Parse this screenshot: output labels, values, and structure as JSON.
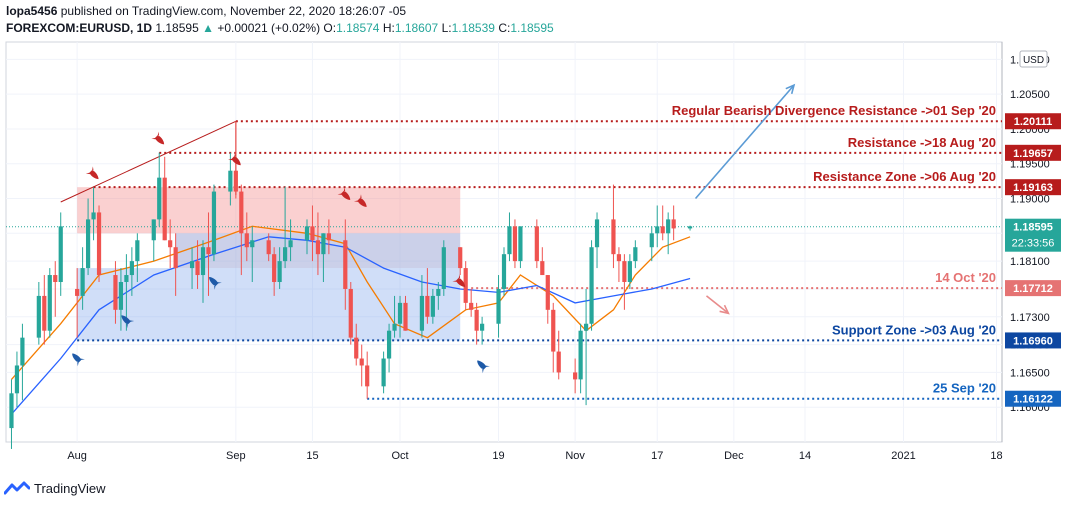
{
  "header": {
    "publisher": "lopa5456",
    "published_text": "published on TradingView.com, November 22, 2020 18:26:07 -05",
    "symbol": "FOREXCOM:EURUSD, 1D",
    "last": "1.18595",
    "change_arrow": "▲",
    "change": "+0.00021 (+0.02%)",
    "o_label": "O:",
    "o": "1.18574",
    "h_label": "H:",
    "h": "1.18607",
    "l_label": "L:",
    "l": "1.18539",
    "c_label": "C:",
    "c": "1.18595"
  },
  "footer": {
    "brand": "TradingView",
    "logo_icon": "tradingview-logo-icon"
  },
  "chart_data": {
    "type": "candlestick",
    "currency_badge": "USD",
    "ylim": [
      1.155,
      1.2125
    ],
    "y_ticks": [
      "1.21000",
      "1.20500",
      "1.20000",
      "1.19500",
      "1.19000",
      "1.18500",
      "1.18100",
      "1.17700",
      "1.17300",
      "1.16900",
      "1.16500",
      "1.16000"
    ],
    "y_tick_values": [
      1.21,
      1.205,
      1.2,
      1.195,
      1.19,
      1.185,
      1.181,
      1.177,
      1.173,
      1.169,
      1.165,
      1.16
    ],
    "x_ticks": [
      {
        "label": "Aug",
        "date": "2020-08-03"
      },
      {
        "label": "Sep",
        "date": "2020-09-01"
      },
      {
        "label": "15",
        "date": "2020-09-15"
      },
      {
        "label": "Oct",
        "date": "2020-10-01"
      },
      {
        "label": "19",
        "date": "2020-10-19"
      },
      {
        "label": "Nov",
        "date": "2020-11-02"
      },
      {
        "label": "17",
        "date": "2020-11-17"
      },
      {
        "label": "Dec",
        "date": "2020-12-01"
      },
      {
        "label": "14",
        "date": "2020-12-14"
      },
      {
        "label": "2021",
        "date": "2021-01-01"
      },
      {
        "label": "18",
        "date": "2021-01-18"
      }
    ],
    "xlim": [
      "2020-07-21",
      "2021-01-19"
    ],
    "candles": [
      {
        "d": "2020-07-22",
        "o": 1.157,
        "h": 1.164,
        "l": 1.154,
        "c": 1.162
      },
      {
        "d": "2020-07-23",
        "o": 1.162,
        "h": 1.168,
        "l": 1.16,
        "c": 1.166
      },
      {
        "d": "2020-07-24",
        "o": 1.166,
        "h": 1.172,
        "l": 1.161,
        "c": 1.17
      },
      {
        "d": "2020-07-27",
        "o": 1.17,
        "h": 1.178,
        "l": 1.169,
        "c": 1.176
      },
      {
        "d": "2020-07-28",
        "o": 1.176,
        "h": 1.179,
        "l": 1.169,
        "c": 1.171
      },
      {
        "d": "2020-07-29",
        "o": 1.171,
        "h": 1.18,
        "l": 1.17,
        "c": 1.179
      },
      {
        "d": "2020-07-30",
        "o": 1.179,
        "h": 1.181,
        "l": 1.173,
        "c": 1.178
      },
      {
        "d": "2020-07-31",
        "o": 1.178,
        "h": 1.188,
        "l": 1.176,
        "c": 1.186
      },
      {
        "d": "2020-08-03",
        "o": 1.177,
        "h": 1.18,
        "l": 1.17,
        "c": 1.176
      },
      {
        "d": "2020-08-04",
        "o": 1.176,
        "h": 1.183,
        "l": 1.174,
        "c": 1.18
      },
      {
        "d": "2020-08-05",
        "o": 1.18,
        "h": 1.19,
        "l": 1.179,
        "c": 1.187
      },
      {
        "d": "2020-08-06",
        "o": 1.187,
        "h": 1.1916,
        "l": 1.184,
        "c": 1.188
      },
      {
        "d": "2020-08-07",
        "o": 1.188,
        "h": 1.189,
        "l": 1.178,
        "c": 1.179
      },
      {
        "d": "2020-08-10",
        "o": 1.179,
        "h": 1.181,
        "l": 1.172,
        "c": 1.174
      },
      {
        "d": "2020-08-11",
        "o": 1.174,
        "h": 1.18,
        "l": 1.171,
        "c": 1.178
      },
      {
        "d": "2020-08-12",
        "o": 1.178,
        "h": 1.182,
        "l": 1.171,
        "c": 1.179
      },
      {
        "d": "2020-08-13",
        "o": 1.179,
        "h": 1.183,
        "l": 1.176,
        "c": 1.181
      },
      {
        "d": "2020-08-14",
        "o": 1.181,
        "h": 1.185,
        "l": 1.178,
        "c": 1.184
      },
      {
        "d": "2020-08-17",
        "o": 1.184,
        "h": 1.187,
        "l": 1.181,
        "c": 1.187
      },
      {
        "d": "2020-08-18",
        "o": 1.187,
        "h": 1.1966,
        "l": 1.186,
        "c": 1.193
      },
      {
        "d": "2020-08-19",
        "o": 1.193,
        "h": 1.196,
        "l": 1.184,
        "c": 1.184
      },
      {
        "d": "2020-08-20",
        "o": 1.184,
        "h": 1.187,
        "l": 1.18,
        "c": 1.183
      },
      {
        "d": "2020-08-21",
        "o": 1.183,
        "h": 1.185,
        "l": 1.176,
        "c": 1.18
      },
      {
        "d": "2020-08-24",
        "o": 1.18,
        "h": 1.183,
        "l": 1.177,
        "c": 1.181
      },
      {
        "d": "2020-08-25",
        "o": 1.181,
        "h": 1.184,
        "l": 1.177,
        "c": 1.179
      },
      {
        "d": "2020-08-26",
        "o": 1.179,
        "h": 1.184,
        "l": 1.175,
        "c": 1.183
      },
      {
        "d": "2020-08-27",
        "o": 1.183,
        "h": 1.188,
        "l": 1.176,
        "c": 1.182
      },
      {
        "d": "2020-08-28",
        "o": 1.182,
        "h": 1.192,
        "l": 1.181,
        "c": 1.191
      },
      {
        "d": "2020-08-31",
        "o": 1.191,
        "h": 1.1966,
        "l": 1.189,
        "c": 1.194
      },
      {
        "d": "2020-09-01",
        "o": 1.194,
        "h": 1.2011,
        "l": 1.19,
        "c": 1.191
      },
      {
        "d": "2020-09-02",
        "o": 1.191,
        "h": 1.192,
        "l": 1.179,
        "c": 1.185
      },
      {
        "d": "2020-09-03",
        "o": 1.185,
        "h": 1.188,
        "l": 1.181,
        "c": 1.183
      },
      {
        "d": "2020-09-04",
        "o": 1.183,
        "h": 1.186,
        "l": 1.178,
        "c": 1.184
      },
      {
        "d": "2020-09-07",
        "o": 1.184,
        "h": 1.185,
        "l": 1.181,
        "c": 1.182
      },
      {
        "d": "2020-09-08",
        "o": 1.182,
        "h": 1.183,
        "l": 1.176,
        "c": 1.178
      },
      {
        "d": "2020-09-09",
        "o": 1.178,
        "h": 1.183,
        "l": 1.177,
        "c": 1.181
      },
      {
        "d": "2020-09-10",
        "o": 1.181,
        "h": 1.1917,
        "l": 1.18,
        "c": 1.183
      },
      {
        "d": "2020-09-11",
        "o": 1.183,
        "h": 1.187,
        "l": 1.181,
        "c": 1.184
      },
      {
        "d": "2020-09-14",
        "o": 1.184,
        "h": 1.187,
        "l": 1.182,
        "c": 1.186
      },
      {
        "d": "2020-09-15",
        "o": 1.186,
        "h": 1.189,
        "l": 1.181,
        "c": 1.184
      },
      {
        "d": "2020-09-16",
        "o": 1.184,
        "h": 1.188,
        "l": 1.179,
        "c": 1.182
      },
      {
        "d": "2020-09-17",
        "o": 1.182,
        "h": 1.185,
        "l": 1.178,
        "c": 1.185
      },
      {
        "d": "2020-09-18",
        "o": 1.185,
        "h": 1.187,
        "l": 1.182,
        "c": 1.184
      },
      {
        "d": "2020-09-21",
        "o": 1.184,
        "h": 1.187,
        "l": 1.174,
        "c": 1.177
      },
      {
        "d": "2020-09-22",
        "o": 1.177,
        "h": 1.178,
        "l": 1.169,
        "c": 1.17
      },
      {
        "d": "2020-09-23",
        "o": 1.17,
        "h": 1.172,
        "l": 1.166,
        "c": 1.167
      },
      {
        "d": "2020-09-24",
        "o": 1.167,
        "h": 1.169,
        "l": 1.163,
        "c": 1.166
      },
      {
        "d": "2020-09-25",
        "o": 1.166,
        "h": 1.168,
        "l": 1.1612,
        "c": 1.163
      },
      {
        "d": "2020-09-28",
        "o": 1.163,
        "h": 1.168,
        "l": 1.162,
        "c": 1.167
      },
      {
        "d": "2020-09-29",
        "o": 1.167,
        "h": 1.172,
        "l": 1.165,
        "c": 1.171
      },
      {
        "d": "2020-09-30",
        "o": 1.171,
        "h": 1.176,
        "l": 1.17,
        "c": 1.172
      },
      {
        "d": "2020-10-01",
        "o": 1.172,
        "h": 1.176,
        "l": 1.17,
        "c": 1.175
      },
      {
        "d": "2020-10-02",
        "o": 1.175,
        "h": 1.176,
        "l": 1.171,
        "c": 1.171
      },
      {
        "d": "2020-10-05",
        "o": 1.171,
        "h": 1.179,
        "l": 1.17,
        "c": 1.176
      },
      {
        "d": "2020-10-06",
        "o": 1.176,
        "h": 1.18,
        "l": 1.172,
        "c": 1.173
      },
      {
        "d": "2020-10-07",
        "o": 1.173,
        "h": 1.177,
        "l": 1.172,
        "c": 1.176
      },
      {
        "d": "2020-10-08",
        "o": 1.176,
        "h": 1.178,
        "l": 1.174,
        "c": 1.177
      },
      {
        "d": "2020-10-09",
        "o": 1.177,
        "h": 1.184,
        "l": 1.176,
        "c": 1.183
      },
      {
        "d": "2020-10-12",
        "o": 1.183,
        "h": 1.183,
        "l": 1.179,
        "c": 1.18
      },
      {
        "d": "2020-10-13",
        "o": 1.18,
        "h": 1.181,
        "l": 1.174,
        "c": 1.175
      },
      {
        "d": "2020-10-14",
        "o": 1.175,
        "h": 1.177,
        "l": 1.173,
        "c": 1.174
      },
      {
        "d": "2020-10-15",
        "o": 1.174,
        "h": 1.175,
        "l": 1.169,
        "c": 1.171
      },
      {
        "d": "2020-10-16",
        "o": 1.171,
        "h": 1.173,
        "l": 1.169,
        "c": 1.172
      },
      {
        "d": "2020-10-19",
        "o": 1.172,
        "h": 1.179,
        "l": 1.17,
        "c": 1.177
      },
      {
        "d": "2020-10-20",
        "o": 1.177,
        "h": 1.183,
        "l": 1.176,
        "c": 1.182
      },
      {
        "d": "2020-10-21",
        "o": 1.182,
        "h": 1.188,
        "l": 1.181,
        "c": 1.186
      },
      {
        "d": "2020-10-22",
        "o": 1.186,
        "h": 1.187,
        "l": 1.18,
        "c": 1.181
      },
      {
        "d": "2020-10-23",
        "o": 1.181,
        "h": 1.186,
        "l": 1.18,
        "c": 1.186
      },
      {
        "d": "2020-10-26",
        "o": 1.186,
        "h": 1.187,
        "l": 1.18,
        "c": 1.181
      },
      {
        "d": "2020-10-27",
        "o": 1.181,
        "h": 1.183,
        "l": 1.179,
        "c": 1.179
      },
      {
        "d": "2020-10-28",
        "o": 1.179,
        "h": 1.179,
        "l": 1.172,
        "c": 1.174
      },
      {
        "d": "2020-10-29",
        "o": 1.174,
        "h": 1.175,
        "l": 1.165,
        "c": 1.168
      },
      {
        "d": "2020-10-30",
        "o": 1.168,
        "h": 1.171,
        "l": 1.164,
        "c": 1.165
      },
      {
        "d": "2020-11-02",
        "o": 1.165,
        "h": 1.167,
        "l": 1.162,
        "c": 1.164
      },
      {
        "d": "2020-11-03",
        "o": 1.164,
        "h": 1.172,
        "l": 1.162,
        "c": 1.171
      },
      {
        "d": "2020-11-04",
        "o": 1.171,
        "h": 1.177,
        "l": 1.1603,
        "c": 1.172
      },
      {
        "d": "2020-11-05",
        "o": 1.172,
        "h": 1.184,
        "l": 1.171,
        "c": 1.183
      },
      {
        "d": "2020-11-06",
        "o": 1.183,
        "h": 1.188,
        "l": 1.18,
        "c": 1.187
      },
      {
        "d": "2020-11-09",
        "o": 1.187,
        "h": 1.192,
        "l": 1.18,
        "c": 1.182
      },
      {
        "d": "2020-11-10",
        "o": 1.182,
        "h": 1.183,
        "l": 1.178,
        "c": 1.181
      },
      {
        "d": "2020-11-11",
        "o": 1.181,
        "h": 1.182,
        "l": 1.174,
        "c": 1.178
      },
      {
        "d": "2020-11-12",
        "o": 1.178,
        "h": 1.182,
        "l": 1.177,
        "c": 1.181
      },
      {
        "d": "2020-11-13",
        "o": 1.181,
        "h": 1.184,
        "l": 1.18,
        "c": 1.183
      },
      {
        "d": "2020-11-16",
        "o": 1.183,
        "h": 1.186,
        "l": 1.181,
        "c": 1.185
      },
      {
        "d": "2020-11-17",
        "o": 1.185,
        "h": 1.189,
        "l": 1.183,
        "c": 1.186
      },
      {
        "d": "2020-11-18",
        "o": 1.186,
        "h": 1.189,
        "l": 1.184,
        "c": 1.185
      },
      {
        "d": "2020-11-19",
        "o": 1.185,
        "h": 1.188,
        "l": 1.182,
        "c": 1.187
      },
      {
        "d": "2020-11-20",
        "o": 1.187,
        "h": 1.189,
        "l": 1.184,
        "c": 1.1857
      },
      {
        "d": "2020-11-23",
        "o": 1.1857,
        "h": 1.1861,
        "l": 1.1854,
        "c": 1.186
      }
    ],
    "ma_series": [
      {
        "color": "#f57c00",
        "points": [
          [
            "2020-07-22",
            1.164
          ],
          [
            "2020-07-31",
            1.172
          ],
          [
            "2020-08-07",
            1.179
          ],
          [
            "2020-08-17",
            1.181
          ],
          [
            "2020-08-28",
            1.184
          ],
          [
            "2020-09-04",
            1.186
          ],
          [
            "2020-09-14",
            1.185
          ],
          [
            "2020-09-21",
            1.1835
          ],
          [
            "2020-09-25",
            1.178
          ],
          [
            "2020-09-30",
            1.172
          ],
          [
            "2020-10-06",
            1.17
          ],
          [
            "2020-10-13",
            1.174
          ],
          [
            "2020-10-19",
            1.175
          ],
          [
            "2020-10-23",
            1.179
          ],
          [
            "2020-10-29",
            1.176
          ],
          [
            "2020-11-04",
            1.171
          ],
          [
            "2020-11-09",
            1.174
          ],
          [
            "2020-11-13",
            1.179
          ],
          [
            "2020-11-18",
            1.183
          ],
          [
            "2020-11-23",
            1.1845
          ]
        ]
      },
      {
        "color": "#2962ff",
        "points": [
          [
            "2020-07-22",
            1.159
          ],
          [
            "2020-07-31",
            1.167
          ],
          [
            "2020-08-07",
            1.174
          ],
          [
            "2020-08-17",
            1.179
          ],
          [
            "2020-08-28",
            1.182
          ],
          [
            "2020-09-07",
            1.1845
          ],
          [
            "2020-09-14",
            1.184
          ],
          [
            "2020-09-21",
            1.183
          ],
          [
            "2020-09-28",
            1.18
          ],
          [
            "2020-10-05",
            1.178
          ],
          [
            "2020-10-12",
            1.177
          ],
          [
            "2020-10-19",
            1.1765
          ],
          [
            "2020-10-26",
            1.1775
          ],
          [
            "2020-11-02",
            1.175
          ],
          [
            "2020-11-09",
            1.176
          ],
          [
            "2020-11-16",
            1.177
          ],
          [
            "2020-11-23",
            1.1785
          ]
        ]
      }
    ],
    "zones": [
      {
        "from": "2020-08-03",
        "to": "2020-10-12",
        "top": 1.19163,
        "bottom": 1.185,
        "color": "rgba(244,143,143,0.42)"
      },
      {
        "from": "2020-08-21",
        "to": "2020-10-12",
        "top": 1.185,
        "bottom": 1.18,
        "color": "rgba(160,170,215,0.55)"
      },
      {
        "from": "2020-08-03",
        "to": "2020-10-12",
        "top": 1.18,
        "bottom": 1.1696,
        "color": "rgba(120,160,235,0.35)"
      }
    ],
    "levels": [
      {
        "value": 1.20111,
        "price_label": "1.20111",
        "text": "Regular Bearish Divergence Resistance ->01 Sep '20",
        "color": "#b71c1c",
        "from": "2020-09-01",
        "label_bg": "#b71c1c"
      },
      {
        "value": 1.19657,
        "price_label": "1.19657",
        "text": "Resistance ->18 Aug '20",
        "color": "#b71c1c",
        "from": "2020-08-18",
        "label_bg": "#b71c1c"
      },
      {
        "value": 1.19163,
        "price_label": "1.19163",
        "text": "Resistance Zone ->06 Aug '20",
        "color": "#b71c1c",
        "from": "2020-08-06",
        "label_bg": "#b71c1c"
      },
      {
        "value": 1.17712,
        "price_label": "1.17712",
        "text": "14 Oct '20",
        "color": "#e57373",
        "from": "2020-10-14",
        "label_bg": "#e57373"
      },
      {
        "value": 1.1696,
        "price_label": "1.16960",
        "text": "Support Zone ->03 Aug '20",
        "color": "#0d47a1",
        "from": "2020-08-03",
        "label_bg": "#0d47a1"
      },
      {
        "value": 1.16122,
        "price_label": "1.16122",
        "text": "25 Sep '20",
        "color": "#1565c0",
        "from": "2020-09-25",
        "label_bg": "#1565c0"
      }
    ],
    "current_price": {
      "value": 1.18595,
      "price_label": "1.18595",
      "timer": "22:33:56",
      "color": "#26a69a"
    },
    "trendline": [
      [
        "2020-07-31",
        1.1895
      ],
      [
        "2020-09-01",
        1.2011
      ]
    ],
    "forecast_up": [
      [
        "2020-11-24",
        1.19
      ],
      [
        "2020-12-12",
        1.2063
      ]
    ],
    "forecast_down": [
      [
        "2020-11-26",
        1.176
      ],
      [
        "2020-11-30",
        1.1735
      ]
    ],
    "sell_markers": [
      [
        "2020-08-06",
        1.1935
      ],
      [
        "2020-08-18",
        1.1985
      ],
      [
        "2020-09-01",
        1.1955
      ],
      [
        "2020-09-21",
        1.1905
      ],
      [
        "2020-09-24",
        1.1895
      ],
      [
        "2020-10-12",
        1.178
      ]
    ],
    "buy_markers": [
      [
        "2020-08-03",
        1.167
      ],
      [
        "2020-08-12",
        1.1725
      ],
      [
        "2020-08-28",
        1.178
      ],
      [
        "2020-10-16",
        1.166
      ]
    ]
  }
}
